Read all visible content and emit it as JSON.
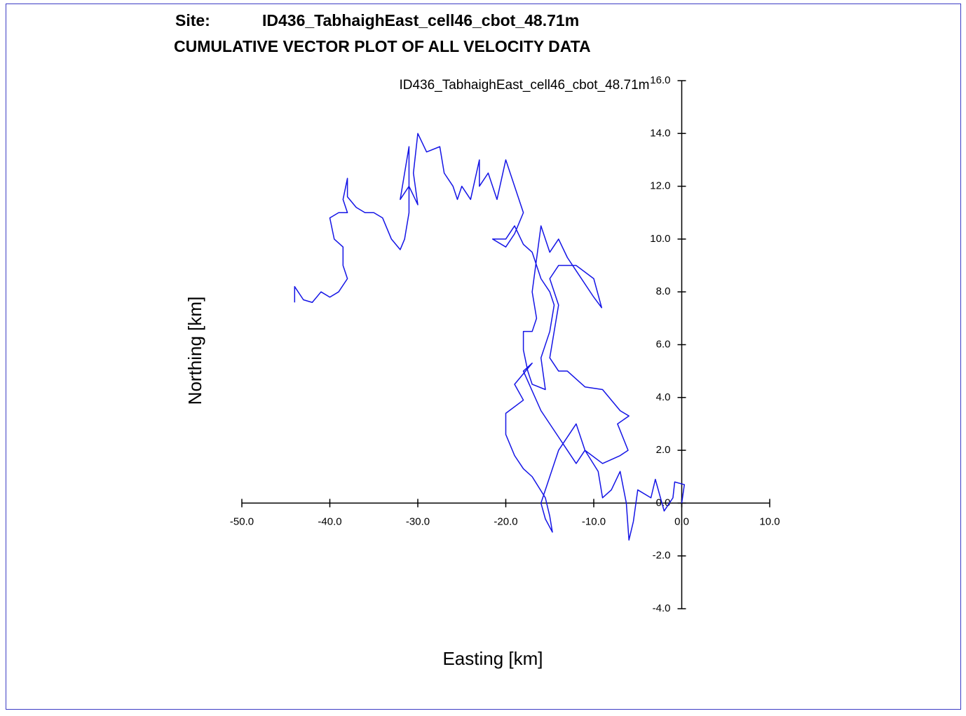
{
  "chart_data": {
    "type": "line",
    "site_label": "Site:",
    "title": "ID436_TabhaighEast_cell46_cbot_48.71m",
    "subtitle": "CUMULATIVE VECTOR PLOT OF ALL VELOCITY DATA",
    "xlabel": "Easting [km]",
    "ylabel": "Northing [km]",
    "xlim": [
      -50,
      10
    ],
    "ylim": [
      -4,
      16
    ],
    "xticks": [
      {
        "value": -50,
        "label": "-50.0"
      },
      {
        "value": -40,
        "label": "-40.0"
      },
      {
        "value": -30,
        "label": "-30.0"
      },
      {
        "value": -20,
        "label": "-20.0"
      },
      {
        "value": -10,
        "label": "-10.0"
      },
      {
        "value": 0,
        "label": "0.0"
      },
      {
        "value": 10,
        "label": "10.0"
      }
    ],
    "yticks": [
      {
        "value": -4,
        "label": "-4.0"
      },
      {
        "value": -2,
        "label": "-2.0"
      },
      {
        "value": 0,
        "label": "0.0"
      },
      {
        "value": 2,
        "label": "2.0"
      },
      {
        "value": 4,
        "label": "4.0"
      },
      {
        "value": 6,
        "label": "6.0"
      },
      {
        "value": 8,
        "label": "8.0"
      },
      {
        "value": 10,
        "label": "10.0"
      },
      {
        "value": 12,
        "label": "12.0"
      },
      {
        "value": 14,
        "label": "14.0"
      },
      {
        "value": 16,
        "label": "16.0"
      }
    ],
    "series": [
      {
        "name": "ID436_TabhaighEast_cell46_cbot_48.71m",
        "color": "#1414e6",
        "x": [
          0,
          0.3,
          -0.8,
          -1,
          -2,
          -3,
          -3.5,
          -5,
          -5.5,
          -6,
          -6.3,
          -7,
          -8,
          -9,
          -9.5,
          -11,
          -12,
          -14,
          -16,
          -18,
          -17,
          -19,
          -18,
          -20,
          -20,
          -19,
          -18,
          -17,
          -15.5,
          -15,
          -14.7,
          -15.5,
          -16,
          -15,
          -14,
          -12,
          -11,
          -9,
          -7,
          -6.1,
          -7.3,
          -6,
          -7,
          -9,
          -11,
          -13,
          -14,
          -15,
          -14.5,
          -14,
          -15,
          -14,
          -12,
          -10,
          -9.1,
          -10,
          -12,
          -13,
          -14,
          -15,
          -16,
          -17,
          -16.5,
          -17,
          -18,
          -18,
          -17.5,
          -17,
          -15.5,
          -16,
          -15,
          -14.5,
          -15,
          -16,
          -17,
          -18,
          -19,
          -20,
          -21.5,
          -20,
          -19,
          -18,
          -19,
          -20,
          -21,
          -22,
          -23,
          -23,
          -24,
          -25,
          -25.5,
          -26,
          -27,
          -27.5,
          -29,
          -30,
          -30.5,
          -30,
          -31,
          -32,
          -31.5,
          -31,
          -31,
          -31.5,
          -32,
          -33,
          -34,
          -35,
          -36,
          -37,
          -38,
          -38,
          -38.5,
          -38,
          -39,
          -40,
          -39.5,
          -38.5,
          -38.5,
          -38,
          -39,
          -40,
          -41,
          -42,
          -43,
          -44,
          -44
        ],
        "values": [
          0,
          0.7,
          0.8,
          0.2,
          -0.3,
          0.9,
          0.2,
          0.5,
          -0.7,
          -1.4,
          0,
          1.2,
          0.5,
          0.2,
          1.2,
          2,
          1.5,
          2.5,
          3.5,
          5,
          5.3,
          4.5,
          3.9,
          3.4,
          2.6,
          1.8,
          1.3,
          1,
          0.2,
          -0.5,
          -1.1,
          -0.6,
          0,
          1,
          2,
          3,
          2,
          1.5,
          1.8,
          2,
          3,
          3.3,
          3.5,
          4.3,
          4.4,
          5,
          5,
          5.5,
          6.5,
          7.5,
          8.5,
          9,
          9,
          8.5,
          7.4,
          7.8,
          8.8,
          9.3,
          10,
          9.5,
          10.5,
          8,
          7,
          6.5,
          6.5,
          5.8,
          5,
          4.5,
          4.3,
          5.5,
          6.5,
          7.5,
          8,
          8.5,
          9.5,
          9.8,
          10.5,
          10,
          10,
          9.7,
          10.2,
          11,
          12,
          13,
          11.5,
          12.5,
          12,
          13,
          11.5,
          12,
          11.5,
          12,
          12.5,
          13.5,
          13.3,
          14,
          12.5,
          11.3,
          12,
          11.5,
          12.5,
          13.5,
          11,
          10,
          9.6,
          10,
          10.8,
          11,
          11,
          11.2,
          11.6,
          12.3,
          11.5,
          11,
          11,
          10.8,
          10,
          9.7,
          9,
          8.5,
          8,
          7.8,
          8,
          7.6,
          7.7,
          8.2,
          7.6
        ]
      }
    ]
  }
}
